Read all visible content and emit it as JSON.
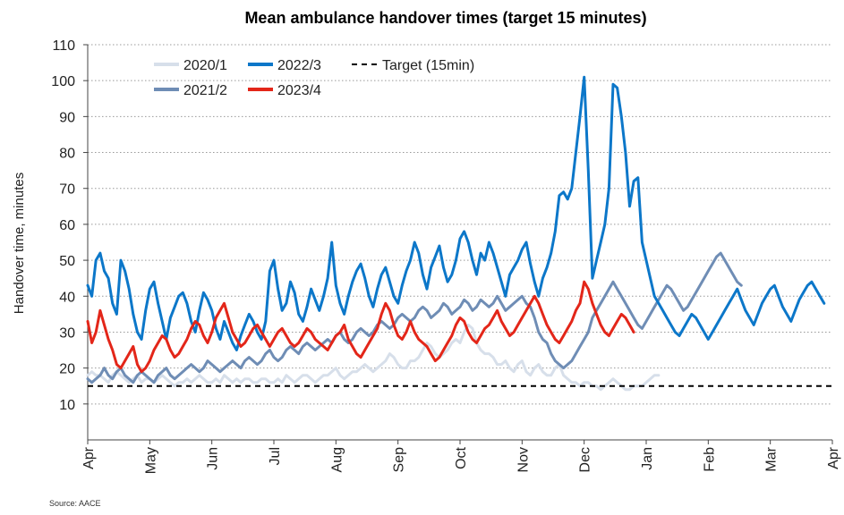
{
  "chart_data": {
    "type": "line",
    "title": "Mean ambulance handover times (target 15 minutes)",
    "ylabel": "Handover time, minutes",
    "xlabel": "",
    "source": "Source: AACE",
    "ylim": [
      0,
      110
    ],
    "yticks": [
      10,
      20,
      30,
      40,
      50,
      60,
      70,
      80,
      90,
      100,
      110
    ],
    "grid": true,
    "legend_position": "top-left",
    "x_month_labels": [
      "Apr",
      "May",
      "Jun",
      "Jul",
      "Aug",
      "Sep",
      "Oct",
      "Nov",
      "Dec",
      "Jan",
      "Feb",
      "Mar",
      "Apr"
    ],
    "target": {
      "name": "Target (15min)",
      "value": 15,
      "color": "#000000"
    },
    "series": [
      {
        "name": "2020/1",
        "color": "#d7dfea",
        "values": [
          18,
          19,
          18,
          18,
          17,
          16,
          18,
          19,
          18,
          17,
          16,
          17,
          18,
          16,
          17,
          17,
          16,
          17,
          18,
          17,
          16,
          15,
          16,
          16,
          17,
          16,
          17,
          18,
          17,
          16,
          16,
          17,
          16,
          18,
          17,
          16,
          17,
          16,
          17,
          17,
          16,
          16,
          17,
          17,
          16,
          16,
          17,
          16,
          18,
          17,
          16,
          17,
          18,
          18,
          17,
          16,
          17,
          18,
          18,
          19,
          20,
          18,
          17,
          18,
          19,
          19,
          20,
          21,
          20,
          19,
          20,
          21,
          22,
          24,
          23,
          21,
          20,
          20,
          22,
          22,
          23,
          25,
          27,
          26,
          24,
          23,
          24,
          25,
          27,
          28,
          27,
          30,
          32,
          31,
          27,
          25,
          24,
          24,
          23,
          21,
          21,
          22,
          20,
          19,
          21,
          22,
          19,
          18,
          20,
          21,
          19,
          18,
          18,
          20,
          21,
          18,
          17,
          16,
          16,
          15,
          16,
          16,
          15,
          15,
          14,
          15,
          16,
          17,
          16,
          15,
          14,
          14,
          15,
          15,
          15,
          16,
          17,
          18,
          18
        ]
      },
      {
        "name": "2021/2",
        "color": "#6f8db5",
        "values": [
          17,
          16,
          17,
          18,
          20,
          18,
          17,
          19,
          20,
          18,
          17,
          16,
          18,
          19,
          18,
          17,
          16,
          18,
          19,
          20,
          18,
          17,
          18,
          19,
          20,
          21,
          20,
          19,
          20,
          22,
          21,
          20,
          19,
          20,
          21,
          22,
          21,
          20,
          22,
          23,
          22,
          21,
          22,
          24,
          25,
          23,
          22,
          23,
          25,
          26,
          25,
          24,
          26,
          27,
          26,
          25,
          26,
          27,
          28,
          27,
          29,
          30,
          28,
          27,
          28,
          30,
          31,
          30,
          29,
          30,
          32,
          33,
          32,
          31,
          32,
          34,
          35,
          34,
          33,
          34,
          36,
          37,
          36,
          34,
          35,
          36,
          38,
          37,
          35,
          36,
          37,
          39,
          38,
          36,
          37,
          39,
          38,
          37,
          38,
          40,
          38,
          36,
          37,
          38,
          39,
          40,
          38,
          37,
          34,
          30,
          28,
          27,
          24,
          22,
          21,
          20,
          21,
          22,
          24,
          26,
          28,
          30,
          34,
          36,
          38,
          40,
          42,
          44,
          42,
          40,
          38,
          36,
          34,
          32,
          31,
          33,
          35,
          37,
          39,
          41,
          43,
          42,
          40,
          38,
          36,
          37,
          39,
          41,
          43,
          45,
          47,
          49,
          51,
          52,
          50,
          48,
          46,
          44,
          43
        ]
      },
      {
        "name": "2022/3",
        "color": "#0c77c9",
        "values": [
          43,
          40,
          50,
          52,
          47,
          45,
          38,
          35,
          50,
          47,
          42,
          35,
          30,
          28,
          36,
          42,
          44,
          38,
          33,
          28,
          34,
          37,
          40,
          41,
          38,
          33,
          30,
          36,
          41,
          39,
          36,
          31,
          28,
          33,
          30,
          27,
          25,
          29,
          32,
          35,
          33,
          30,
          28,
          33,
          47,
          50,
          42,
          36,
          38,
          44,
          41,
          35,
          33,
          37,
          42,
          39,
          36,
          40,
          45,
          55,
          43,
          38,
          35,
          40,
          44,
          47,
          49,
          45,
          40,
          37,
          42,
          46,
          48,
          44,
          40,
          38,
          43,
          47,
          50,
          55,
          52,
          46,
          42,
          48,
          51,
          54,
          48,
          44,
          46,
          50,
          56,
          58,
          55,
          50,
          46,
          52,
          50,
          55,
          52,
          48,
          44,
          40,
          46,
          48,
          50,
          53,
          55,
          49,
          44,
          40,
          45,
          48,
          52,
          58,
          68,
          69,
          67,
          70,
          80,
          90,
          101,
          75,
          45,
          50,
          55,
          60,
          70,
          99,
          98,
          90,
          80,
          65,
          72,
          73,
          55,
          50,
          45,
          40,
          38,
          36,
          34,
          32,
          30,
          29,
          31,
          33,
          35,
          34,
          32,
          30,
          28,
          30,
          32,
          34,
          36,
          38,
          40,
          42,
          39,
          36,
          34,
          32,
          35,
          38,
          40,
          42,
          43,
          40,
          37,
          35,
          33,
          36,
          39,
          41,
          43,
          44,
          42,
          40,
          38
        ]
      },
      {
        "name": "2023/4",
        "color": "#e32619",
        "values": [
          33,
          27,
          30,
          36,
          32,
          28,
          25,
          21,
          20,
          22,
          24,
          26,
          21,
          19,
          20,
          22,
          25,
          27,
          29,
          28,
          25,
          23,
          24,
          26,
          28,
          31,
          33,
          32,
          29,
          27,
          30,
          34,
          36,
          38,
          34,
          30,
          28,
          26,
          27,
          29,
          31,
          32,
          30,
          28,
          26,
          28,
          30,
          31,
          29,
          27,
          26,
          27,
          29,
          31,
          30,
          28,
          27,
          26,
          25,
          27,
          29,
          30,
          32,
          28,
          26,
          24,
          23,
          25,
          27,
          29,
          31,
          35,
          38,
          36,
          32,
          29,
          28,
          30,
          33,
          30,
          28,
          27,
          26,
          24,
          22,
          23,
          25,
          27,
          29,
          32,
          34,
          33,
          30,
          28,
          27,
          29,
          31,
          32,
          34,
          36,
          33,
          31,
          29,
          30,
          32,
          34,
          36,
          38,
          40,
          38,
          35,
          32,
          30,
          28,
          27,
          29,
          31,
          33,
          36,
          38,
          44,
          42,
          38,
          35,
          32,
          30,
          29,
          31,
          33,
          35,
          34,
          32,
          30
        ]
      }
    ]
  }
}
